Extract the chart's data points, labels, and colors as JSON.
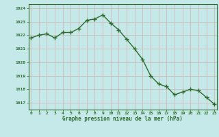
{
  "x": [
    0,
    1,
    2,
    3,
    4,
    5,
    6,
    7,
    8,
    9,
    10,
    11,
    12,
    13,
    14,
    15,
    16,
    17,
    18,
    19,
    20,
    21,
    22,
    23
  ],
  "y": [
    1021.8,
    1022.0,
    1022.1,
    1021.8,
    1022.2,
    1022.2,
    1022.5,
    1023.1,
    1023.2,
    1023.5,
    1022.9,
    1022.4,
    1021.7,
    1021.0,
    1020.2,
    1019.0,
    1018.4,
    1018.2,
    1017.6,
    1017.8,
    1018.0,
    1017.9,
    1017.4,
    1016.9
  ],
  "line_color": "#2d6a2d",
  "marker": "+",
  "bg_color": "#c5e8e8",
  "grid_color": "#b0d0d0",
  "xlabel": "Graphe pression niveau de la mer (hPa)",
  "xlabel_color": "#2d6a2d",
  "tick_color": "#2d6a2d",
  "ylim_min": 1016.5,
  "ylim_max": 1024.3,
  "yticks": [
    1017,
    1018,
    1019,
    1020,
    1021,
    1022,
    1023,
    1024
  ],
  "xtick_labels": [
    "0",
    "1",
    "2",
    "3",
    "4",
    "5",
    "6",
    "7",
    "8",
    "9",
    "10",
    "11",
    "12",
    "13",
    "14",
    "15",
    "16",
    "17",
    "18",
    "19",
    "20",
    "21",
    "22",
    "23"
  ],
  "linewidth": 1.0,
  "markersize": 4,
  "markeredgewidth": 1.0
}
